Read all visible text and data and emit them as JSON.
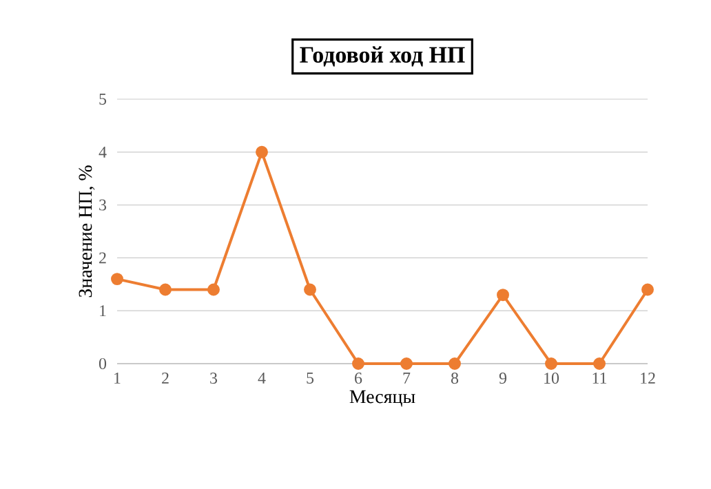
{
  "chart_data": {
    "type": "line",
    "title": "Годовой ход НП",
    "xlabel": "Месяцы",
    "ylabel": "Значение НП, %",
    "categories": [
      "1",
      "2",
      "3",
      "4",
      "5",
      "6",
      "7",
      "8",
      "9",
      "10",
      "11",
      "12"
    ],
    "series": [
      {
        "color": "#ed7d31",
        "values": [
          1.6,
          1.4,
          1.4,
          4.0,
          1.4,
          0,
          0,
          0,
          1.3,
          0,
          0,
          1.4
        ]
      }
    ],
    "ylim": [
      0,
      5
    ],
    "yticks": [
      0,
      1,
      2,
      3,
      4,
      5
    ],
    "grid": "y",
    "marker": "circle",
    "line_style": "solid"
  }
}
